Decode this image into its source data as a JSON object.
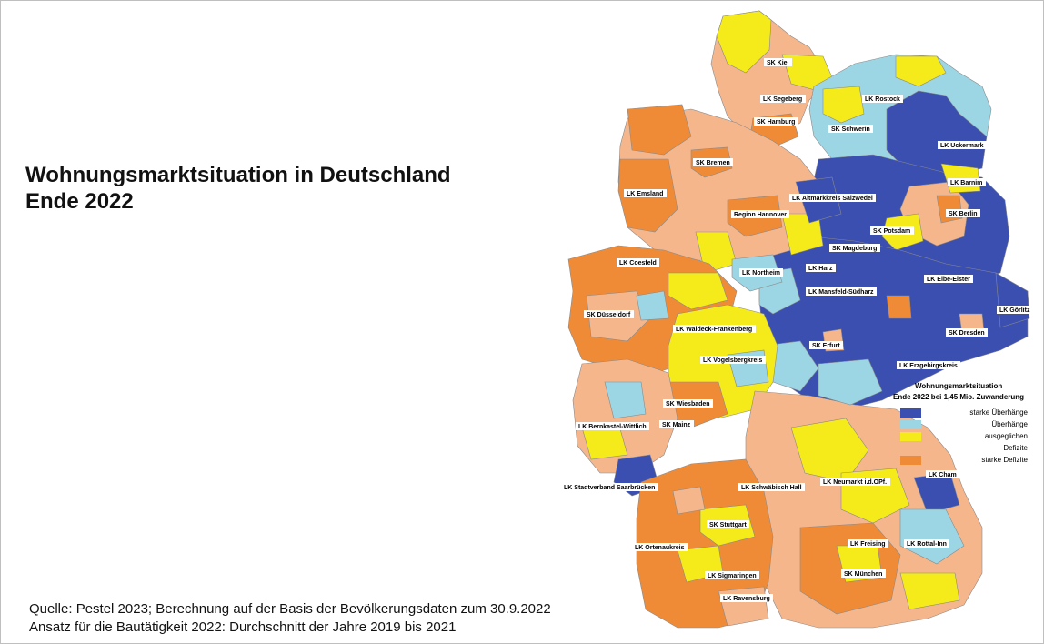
{
  "title": {
    "line1": "Wohnungsmarktsituation in Deutschland",
    "line2": "Ende 2022"
  },
  "source": {
    "line1": "Quelle: Pestel 2023; Berechnung auf der Basis der Bevölkerungsdaten zum 30.9.2022",
    "line2": "Ansatz für die Bautätigkeit 2022: Durchschnitt der Jahre 2019 bis 2021"
  },
  "legend": {
    "title1": "Wohnungsmarktsituation",
    "title2": "Ende 2022 bei 1,45 Mio. Zuwanderung",
    "items": [
      {
        "label": "starke Überhänge",
        "color": "#3a4fb0"
      },
      {
        "label": "Überhänge",
        "color": "#9cd6e4"
      },
      {
        "label": "ausgeglichen",
        "color": "#f5eb1a"
      },
      {
        "label": "Defizite",
        "color": "#f6b68c"
      },
      {
        "label": "starke Defizite",
        "color": "#ef8b37"
      }
    ]
  },
  "map": {
    "labels": [
      "SK Kiel",
      "LK Segeberg",
      "SK Hamburg",
      "LK Rostock",
      "SK Schwerin",
      "LK Uckermark",
      "SK Bremen",
      "LK Emsland",
      "LK Altmarkkreis Salzwedel",
      "LK Barnim",
      "Region Hannover",
      "SK Berlin",
      "SK Potsdam",
      "SK Magdeburg",
      "LK Coesfeld",
      "LK Harz",
      "LK Northeim",
      "LK Elbe-Elster",
      "LK Mansfeld-Südharz",
      "LK Görlitz",
      "SK Düsseldorf",
      "LK Waldeck-Frankenberg",
      "SK Dresden",
      "SK Erfurt",
      "LK Vogelsbergkreis",
      "LK Erzgebirgskreis",
      "SK Wiesbaden",
      "LK Bernkastel-Wittlich",
      "SK Mainz",
      "LK Cham",
      "LK Neumarkt i.d.OPf.",
      "LK Stadtverband Saarbrücken",
      "LK Schwäbisch Hall",
      "SK Stuttgart",
      "LK Ortenaukreis",
      "LK Freising",
      "LK Rottal-Inn",
      "LK Sigmaringen",
      "SK München",
      "LK Ravensburg"
    ]
  }
}
